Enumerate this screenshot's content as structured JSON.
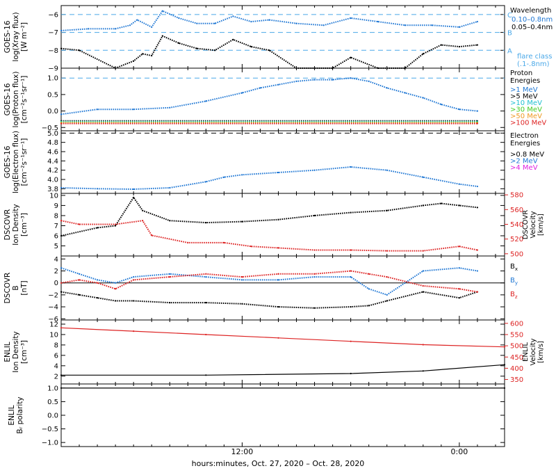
{
  "x_axis": {
    "title": "hours:minutes, Oct. 27, 2020 – Oct. 28, 2020",
    "range_hours": [
      2,
      26.5
    ],
    "ticks": [
      {
        "h": 12,
        "label": "12:00"
      },
      {
        "h": 24,
        "label": "0:00"
      }
    ]
  },
  "chart_data": [
    {
      "type": "scatter",
      "panel": "goes-xray",
      "ylabel": [
        "GOES-16",
        "log(Xray flux)",
        "[W m⁻²]"
      ],
      "ylim": [
        -9.0,
        -5.5
      ],
      "yticks": [
        -9,
        -8,
        -7,
        -6
      ],
      "grid": false,
      "legend_title": "Wavelength",
      "legend_footer": [
        "flare class",
        "(.1-.8nm)"
      ],
      "thresholds": [
        {
          "value": -6,
          "label": "C",
          "color": "#4aa8e8"
        },
        {
          "value": -7,
          "label": "B",
          "color": "#4aa8e8"
        },
        {
          "value": -8,
          "label": "A",
          "color": "#4aa8e8"
        }
      ],
      "series": [
        {
          "name": "0.10–0.8nm",
          "color": "#1f77d4",
          "x": [
            2.0,
            3.5,
            5.0,
            5.8,
            6.2,
            7.0,
            7.6,
            8.5,
            9.5,
            10.5,
            11.5,
            12.5,
            13.5,
            15.0,
            16.5,
            18.0,
            19.5,
            21.0,
            22.5,
            24.0,
            25.0
          ],
          "y": [
            -6.9,
            -6.8,
            -6.8,
            -6.6,
            -6.3,
            -6.7,
            -5.8,
            -6.2,
            -6.5,
            -6.5,
            -6.1,
            -6.4,
            -6.3,
            -6.5,
            -6.6,
            -6.2,
            -6.4,
            -6.6,
            -6.6,
            -6.7,
            -6.4
          ]
        },
        {
          "name": "0.05–0.4nm",
          "color": "#000000",
          "x": [
            2.0,
            3.0,
            5.0,
            6.0,
            6.5,
            7.0,
            7.6,
            8.5,
            9.5,
            10.5,
            11.5,
            12.5,
            13.5,
            15.0,
            17.0,
            18.0,
            19.5,
            21.0,
            22.0,
            23.0,
            24.0,
            25.0
          ],
          "y": [
            -7.9,
            -8.0,
            -9.0,
            -8.6,
            -8.2,
            -8.3,
            -7.2,
            -7.6,
            -7.9,
            -8.0,
            -7.4,
            -7.8,
            -8.0,
            -9.0,
            -9.0,
            -8.4,
            -9.0,
            -9.0,
            -8.2,
            -7.7,
            -7.8,
            -7.7
          ]
        }
      ]
    },
    {
      "type": "scatter",
      "panel": "goes-proton",
      "ylabel": [
        "GOES-16",
        "log(Proton flux)",
        "[cm⁻²s⁻¹sr⁻¹]"
      ],
      "ylim": [
        -0.6,
        1.3
      ],
      "yticks": [
        -0.5,
        0.0,
        0.5,
        1.0
      ],
      "grid": false,
      "legend_title": [
        "Proton",
        "Energies"
      ],
      "thresholds": [
        {
          "value": 1.0,
          "label": "",
          "color": "#4aa8e8"
        }
      ],
      "series": [
        {
          "name": ">1 MeV",
          "color": "#1f77d4",
          "x": [
            2,
            4,
            6,
            8,
            10,
            12,
            13,
            14,
            15,
            16,
            17,
            18,
            19,
            20,
            21,
            22,
            23,
            24,
            25
          ],
          "y": [
            -0.1,
            0.05,
            0.05,
            0.1,
            0.3,
            0.55,
            0.7,
            0.8,
            0.9,
            0.95,
            0.95,
            1.0,
            0.9,
            0.7,
            0.55,
            0.4,
            0.2,
            0.05,
            0.0
          ]
        },
        {
          "name": ">5 MeV",
          "color": "#000000",
          "x": [
            2,
            25
          ],
          "y": [
            -0.3,
            -0.3
          ]
        },
        {
          "name": ">10 MeV",
          "color": "#20c0d0",
          "x": [
            2,
            25
          ],
          "y": [
            -0.32,
            -0.32
          ]
        },
        {
          "name": ">30 MeV",
          "color": "#44cc22",
          "x": [
            2,
            25
          ],
          "y": [
            -0.34,
            -0.34
          ]
        },
        {
          "name": ">50 MeV",
          "color": "#ee9922",
          "x": [
            2,
            25
          ],
          "y": [
            -0.36,
            -0.36
          ]
        },
        {
          "name": ">100 MeV",
          "color": "#dd2222",
          "x": [
            2,
            25
          ],
          "y": [
            -0.38,
            -0.38
          ]
        }
      ]
    },
    {
      "type": "scatter",
      "panel": "goes-electron",
      "ylabel": [
        "GOES-16",
        "log(Electron flux)",
        "[cm⁻²s⁻¹sr⁻¹]"
      ],
      "ylim": [
        3.7,
        5.05
      ],
      "yticks": [
        3.8,
        4.0,
        4.2,
        4.4,
        4.6,
        4.8,
        5.0
      ],
      "grid": false,
      "legend_title": [
        "Electron",
        "Energies"
      ],
      "thresholds": [
        {
          "value": 5.0,
          "label": "",
          "color": "#000000"
        }
      ],
      "series": [
        {
          "name": ">0.8 MeV",
          "color": "#000000",
          "x": [],
          "y": []
        },
        {
          "name": ">2 MeV",
          "color": "#1f77d4",
          "x": [
            2,
            4,
            6,
            8,
            10,
            11,
            12,
            14,
            16,
            18,
            20,
            22,
            24,
            25
          ],
          "y": [
            3.82,
            3.8,
            3.79,
            3.82,
            3.95,
            4.05,
            4.1,
            4.15,
            4.2,
            4.27,
            4.2,
            4.05,
            3.9,
            3.85
          ]
        },
        {
          "name": ">4 MeV",
          "color": "#e020e0",
          "x": [],
          "y": []
        }
      ]
    },
    {
      "type": "scatter",
      "panel": "dscovr-plasma",
      "ylabel": [
        "DSCOVR",
        "Ion Density",
        "[cm⁻³]"
      ],
      "ylim": [
        4,
        10.2
      ],
      "yticks": [
        5,
        6,
        7,
        8,
        9,
        10
      ],
      "y2label": [
        "DSCOVR",
        "Velocity",
        "[km/s]"
      ],
      "y2lim": [
        497,
        582
      ],
      "y2ticks": [
        500,
        520,
        540,
        560,
        580
      ],
      "grid": false,
      "series": [
        {
          "name": "Ion Density",
          "color": "#000000",
          "axis": "left",
          "x": [
            2,
            4,
            5,
            6,
            6.5,
            8,
            10,
            12,
            14,
            16,
            18,
            20,
            22,
            23,
            24,
            25
          ],
          "y": [
            6.0,
            6.8,
            7.0,
            9.8,
            8.5,
            7.5,
            7.3,
            7.4,
            7.6,
            8.0,
            8.3,
            8.5,
            9.0,
            9.2,
            9.0,
            8.8
          ]
        },
        {
          "name": "Velocity",
          "color": "#dd2222",
          "axis": "right",
          "x": [
            2,
            3,
            5,
            6.5,
            7,
            9,
            11,
            12.5,
            14,
            16,
            18,
            20,
            22,
            24,
            25
          ],
          "y": [
            545,
            540,
            540,
            545,
            525,
            515,
            515,
            510,
            508,
            505,
            505,
            504,
            504,
            510,
            505
          ]
        }
      ]
    },
    {
      "type": "scatter",
      "panel": "dscovr-mag",
      "ylabel": [
        "DSCOVR",
        "B",
        "[nT]"
      ],
      "ylim": [
        -6.2,
        4.5
      ],
      "yticks": [
        -6,
        -4,
        -2,
        0,
        2,
        4
      ],
      "zero_line": true,
      "grid": false,
      "series": [
        {
          "name": "B",
          "subscript": "x",
          "color": "#000000",
          "x": [
            2,
            3,
            4,
            5,
            6,
            8,
            10,
            12,
            14,
            16,
            18,
            19,
            20,
            22,
            24,
            25
          ],
          "y": [
            -1.5,
            -2.0,
            -2.5,
            -3.0,
            -3.0,
            -3.3,
            -3.3,
            -3.5,
            -4.0,
            -4.2,
            -4.0,
            -3.8,
            -3.0,
            -1.5,
            -2.5,
            -1.5
          ]
        },
        {
          "name": "B",
          "subscript": "y",
          "color": "#1f77d4",
          "x": [
            2,
            3,
            4,
            5,
            6,
            8,
            10,
            12,
            14,
            16,
            18,
            19,
            20,
            22,
            24,
            25
          ],
          "y": [
            2.5,
            1.5,
            0.5,
            0.0,
            1.0,
            1.5,
            1.0,
            0.5,
            0.5,
            1.0,
            1.0,
            -1.0,
            -2.0,
            2.0,
            2.5,
            2.0
          ]
        },
        {
          "name": "B",
          "subscript": "z",
          "color": "#dd2222",
          "x": [
            2,
            3,
            4,
            5,
            6,
            8,
            10,
            12,
            14,
            16,
            18,
            19,
            20,
            22,
            24,
            25
          ],
          "y": [
            0.0,
            0.5,
            0.0,
            -1.0,
            0.5,
            1.0,
            1.5,
            1.0,
            1.5,
            1.5,
            2.0,
            1.5,
            1.0,
            -0.5,
            -1.0,
            -1.5
          ]
        }
      ]
    },
    {
      "type": "line",
      "panel": "enlil-plasma",
      "ylabel": [
        "ENLIL",
        "Ion Density",
        "[cm⁻³]"
      ],
      "ylim": [
        0.5,
        12.8
      ],
      "yticks": [
        2,
        4,
        6,
        8,
        10,
        12
      ],
      "y2label": [
        "ENLIL",
        "Velocity",
        "[km/s]"
      ],
      "y2lim": [
        330,
        615
      ],
      "y2ticks": [
        350,
        400,
        450,
        500,
        550,
        600
      ],
      "grid": false,
      "series": [
        {
          "name": "Velocity",
          "color": "#dd2222",
          "axis": "right",
          "x": [
            2,
            6,
            10,
            14,
            18,
            22,
            26.5
          ],
          "y": [
            580,
            565,
            550,
            535,
            520,
            505,
            495
          ]
        },
        {
          "name": "Ion Density",
          "color": "#000000",
          "axis": "left",
          "x": [
            2,
            10,
            18,
            22,
            26.5
          ],
          "y": [
            2.2,
            2.2,
            2.5,
            3.0,
            4.2
          ]
        }
      ]
    },
    {
      "type": "line",
      "panel": "enlil-polarity",
      "ylabel": [
        "ENLIL",
        "Bᵣ polarity"
      ],
      "ylim": [
        -1.15,
        1.15
      ],
      "yticks": [
        -1.0,
        -0.5,
        0.0,
        0.5,
        1.0
      ],
      "grid": false,
      "series": [
        {
          "name": "polarity",
          "color": "#000000",
          "x": [
            2,
            26.5
          ],
          "y": [
            1.0,
            1.0
          ]
        }
      ]
    }
  ]
}
